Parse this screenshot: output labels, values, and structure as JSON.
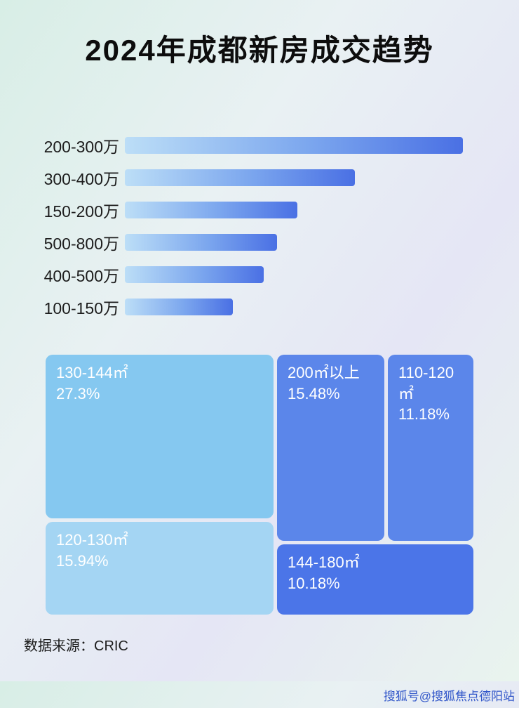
{
  "page": {
    "title": "2024年成都新房成交趋势",
    "source": "数据来源：CRIC",
    "watermark": "搜狐号@搜狐焦点德阳站"
  },
  "chart_data": [
    {
      "type": "bar",
      "orientation": "horizontal",
      "title": "2024年成都新房成交趋势",
      "categories": [
        "200-300万",
        "300-400万",
        "150-200万",
        "500-800万",
        "400-500万",
        "100-150万"
      ],
      "values": [
        100,
        68,
        51,
        45,
        41,
        32
      ],
      "xlim": [
        0,
        100
      ],
      "value_note": "bar lengths estimated as percent of longest bar; no numeric axis labels shown in image",
      "legend": false,
      "grid": false,
      "bar_color_gradient": [
        "#bcdef7",
        "#4a70e4"
      ]
    },
    {
      "type": "treemap",
      "items": [
        {
          "label": "130-144㎡",
          "value": "27.3%",
          "color": "#85c8f0"
        },
        {
          "label": "120-130㎡",
          "value": "15.94%",
          "color": "#a4d5f3"
        },
        {
          "label": "200㎡以上",
          "value": "15.48%",
          "color": "#5b86ea"
        },
        {
          "label": "110-120㎡",
          "value": "11.18%",
          "color": "#5b86ea"
        },
        {
          "label": "144-180㎡",
          "value": "10.18%",
          "color": "#4b75e8"
        }
      ]
    }
  ]
}
